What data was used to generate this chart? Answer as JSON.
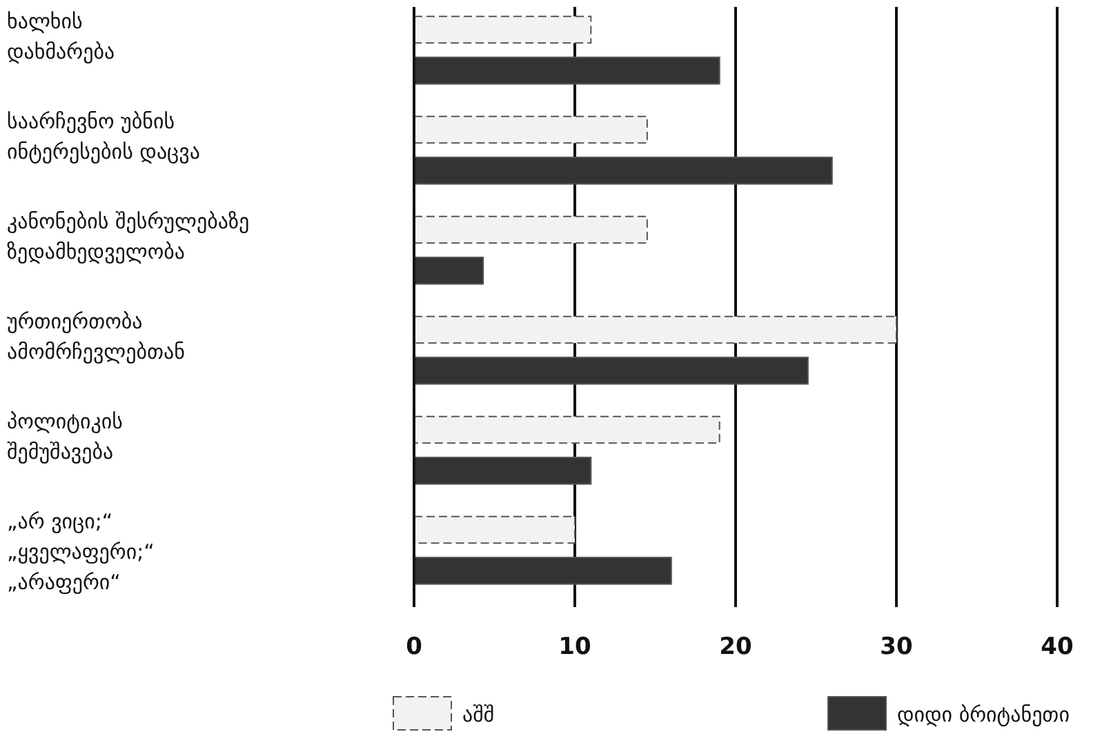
{
  "chart_data": {
    "type": "bar",
    "orientation": "horizontal",
    "categories": [
      "ხალხის\nდახმარება",
      "საარჩევნო უბნის\nინტერესების დაცვა",
      "კანონების შესრულებაზე\nზედამხედველობა",
      "ურთიერთობა\nამომრჩევლებთან",
      "პოლიტიკის\nშემუშავება",
      "„არ ვიცი;“\n„ყველაფერი;“\n„არაფერი“"
    ],
    "series": [
      {
        "name": "აშშ",
        "color": "#f2f2f2",
        "values": [
          11,
          14.5,
          14.5,
          30,
          19,
          10
        ]
      },
      {
        "name": "დიდი ბრიტანეთი",
        "color": "#333333",
        "values": [
          19,
          26,
          4.3,
          24.5,
          11,
          16
        ]
      }
    ],
    "xlim": [
      0,
      40
    ],
    "xticks": [
      0,
      10,
      20,
      30,
      40
    ],
    "grid": "x",
    "legend": "bottom"
  }
}
